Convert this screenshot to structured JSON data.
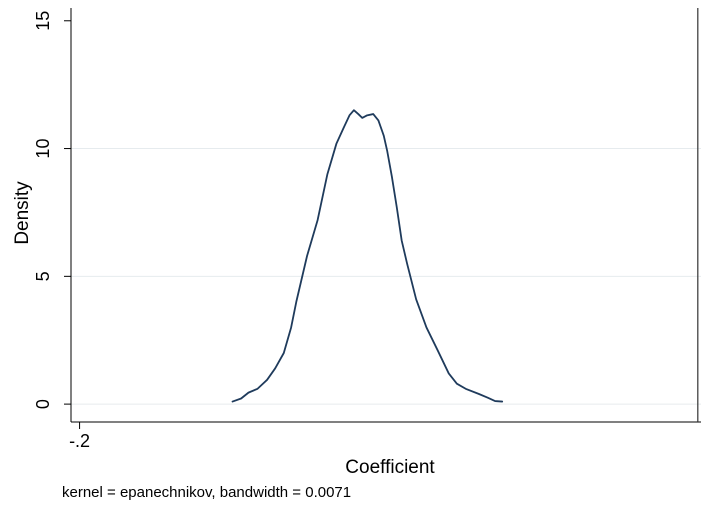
{
  "chart_data": {
    "type": "line",
    "title": "",
    "xlabel": "Coefficient",
    "ylabel": "Density",
    "note": "kernel = epanechnikov, bandwidth = 0.0071",
    "x_ticks": [
      {
        "value": -0.2,
        "label": "-.2"
      }
    ],
    "y_ticks": [
      {
        "value": 0,
        "label": "0"
      },
      {
        "value": 5,
        "label": "5"
      },
      {
        "value": 10,
        "label": "10"
      },
      {
        "value": 15,
        "label": "15"
      }
    ],
    "xlim": [
      -0.2035,
      0.0535
    ],
    "ylim": [
      -0.7,
      15.5
    ],
    "grid": true,
    "reference_line_x": 0.0522,
    "series": [
      {
        "color": "#1f3b5c",
        "x": [
          -0.1376,
          -0.1341,
          -0.1311,
          -0.1274,
          -0.1235,
          -0.1202,
          -0.1167,
          -0.1137,
          -0.1116,
          -0.1072,
          -0.1029,
          -0.0989,
          -0.0952,
          -0.0921,
          -0.0899,
          -0.0881,
          -0.0863,
          -0.0847,
          -0.0827,
          -0.0802,
          -0.0781,
          -0.0759,
          -0.0745,
          -0.0726,
          -0.0706,
          -0.0686,
          -0.0664,
          -0.0627,
          -0.0585,
          -0.0539,
          -0.0494,
          -0.0461,
          -0.0425,
          -0.0372,
          -0.0335,
          -0.0305,
          -0.0276
        ],
        "y": [
          0.1,
          0.22,
          0.45,
          0.6,
          0.95,
          1.4,
          2.0,
          3.0,
          4.0,
          5.8,
          7.2,
          9.0,
          10.2,
          10.85,
          11.3,
          11.5,
          11.35,
          11.2,
          11.3,
          11.35,
          11.1,
          10.5,
          9.9,
          8.9,
          7.7,
          6.4,
          5.5,
          4.1,
          3.0,
          2.1,
          1.2,
          0.8,
          0.6,
          0.4,
          0.25,
          0.12,
          0.1
        ]
      }
    ]
  }
}
